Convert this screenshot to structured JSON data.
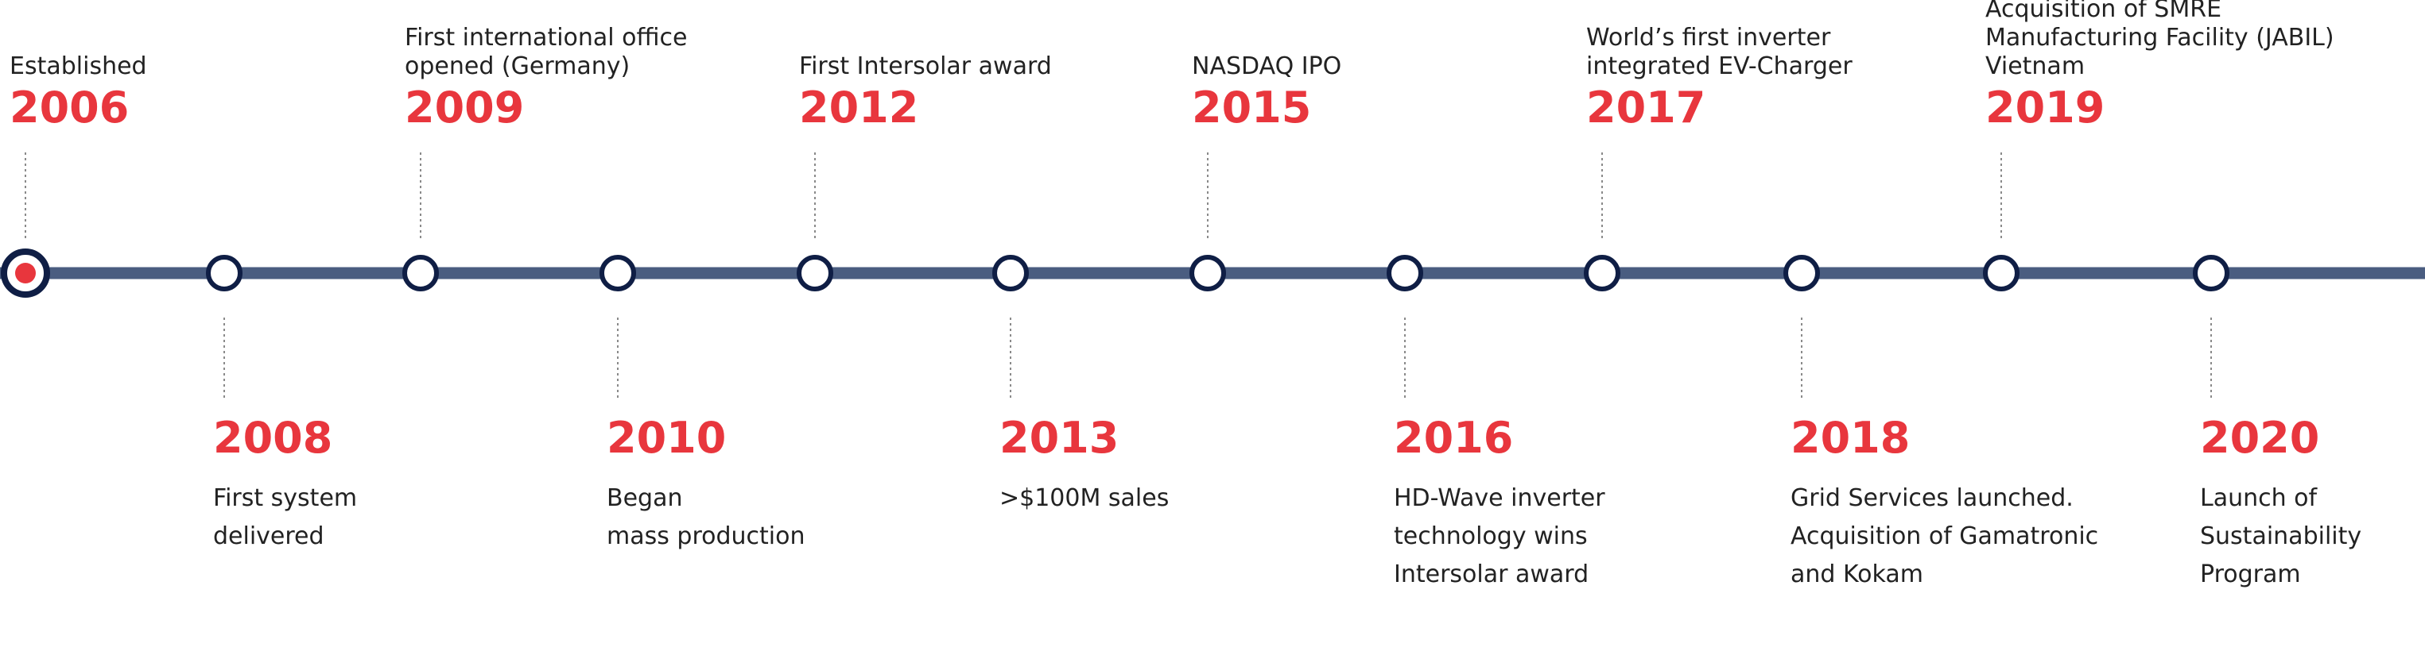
{
  "colors": {
    "line": "#4a5d80",
    "node_stroke": "#0f1e45",
    "node_fill": "#ffffff",
    "active_dot": "#e8363d",
    "year": "#e8363d",
    "text": "#222222",
    "connector": "#8a8a8a"
  },
  "events": [
    {
      "year": "2006",
      "description": "Established",
      "side": "above",
      "active": true
    },
    {
      "year": "2008",
      "description": "First system\ndelivered",
      "side": "below",
      "active": false
    },
    {
      "year": "2009",
      "description": "First international office\nopened (Germany)",
      "side": "above",
      "active": false
    },
    {
      "year": "2010",
      "description": "Began\nmass production",
      "side": "below",
      "active": false
    },
    {
      "year": "2012",
      "description": "First Intersolar award",
      "side": "above",
      "active": false
    },
    {
      "year": "2013",
      "description": ">$100M sales",
      "side": "below",
      "active": false
    },
    {
      "year": "2015",
      "description": "NASDAQ IPO",
      "side": "above",
      "active": false
    },
    {
      "year": "2016",
      "description": "HD-Wave inverter\ntechnology wins\nIntersolar award",
      "side": "below",
      "active": false
    },
    {
      "year": "2017",
      "description": "World’s first inverter\nintegrated EV-Charger",
      "side": "above",
      "active": false
    },
    {
      "year": "2018",
      "description": "Grid Services launched.\nAcquisition of Gamatronic\nand Kokam",
      "side": "below",
      "active": false
    },
    {
      "year": "2019",
      "description": "Acquisition of SMRE\nManufacturing Facility (JABIL) Vietnam",
      "side": "above",
      "active": false
    },
    {
      "year": "2020",
      "description": "Launch of Sustainability\nProgram",
      "side": "below",
      "active": false
    }
  ]
}
